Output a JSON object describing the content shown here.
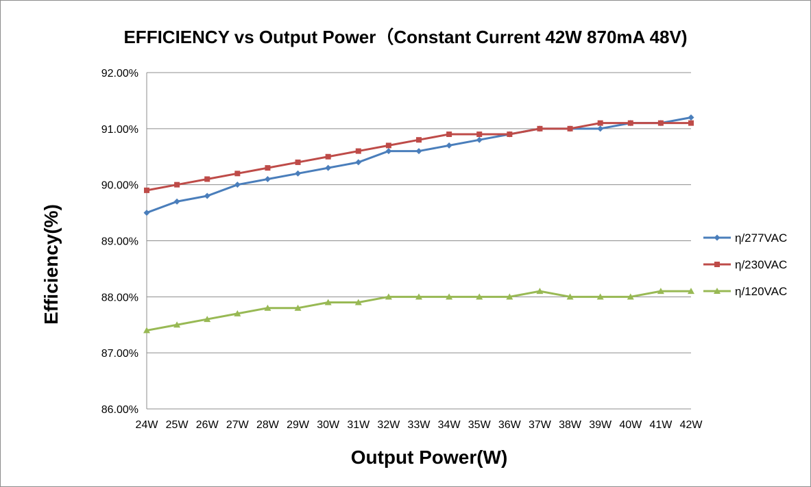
{
  "chart_data": {
    "type": "line",
    "title": "EFFICIENCY vs Output Power（Constant Current 42W 870mA 48V)",
    "xlabel": "Output Power(W)",
    "ylabel": "Efficiency(%)",
    "categories": [
      "24W",
      "25W",
      "26W",
      "27W",
      "28W",
      "29W",
      "30W",
      "31W",
      "32W",
      "33W",
      "34W",
      "35W",
      "36W",
      "37W",
      "38W",
      "39W",
      "40W",
      "41W",
      "42W"
    ],
    "ylim": [
      86.0,
      92.0
    ],
    "yticks": [
      "86.00%",
      "87.00%",
      "88.00%",
      "89.00%",
      "90.00%",
      "91.00%",
      "92.00%"
    ],
    "grid": true,
    "legend_position": "right",
    "series": [
      {
        "name": "η/277VAC",
        "color": "#4a7ebb",
        "marker": "diamond",
        "values": [
          89.5,
          89.7,
          89.8,
          90.0,
          90.1,
          90.2,
          90.3,
          90.4,
          90.6,
          90.6,
          90.7,
          90.8,
          90.9,
          91.0,
          91.0,
          91.0,
          91.1,
          91.1,
          91.2
        ]
      },
      {
        "name": "η/230VAC",
        "color": "#be4b48",
        "marker": "square",
        "values": [
          89.9,
          90.0,
          90.1,
          90.2,
          90.3,
          90.4,
          90.5,
          90.6,
          90.7,
          90.8,
          90.9,
          90.9,
          90.9,
          91.0,
          91.0,
          91.1,
          91.1,
          91.1,
          91.1
        ]
      },
      {
        "name": "η/120VAC",
        "color": "#98b954",
        "marker": "triangle",
        "values": [
          87.4,
          87.5,
          87.6,
          87.7,
          87.8,
          87.8,
          87.9,
          87.9,
          88.0,
          88.0,
          88.0,
          88.0,
          88.0,
          88.1,
          88.0,
          88.0,
          88.0,
          88.1,
          88.1
        ]
      }
    ]
  }
}
